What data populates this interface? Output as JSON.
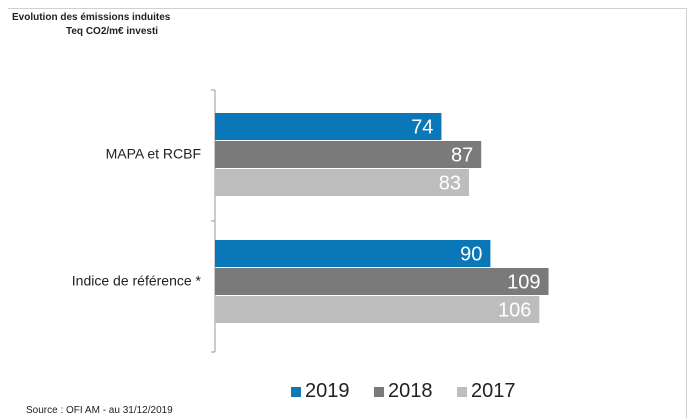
{
  "chart_data": {
    "type": "bar",
    "orientation": "horizontal",
    "title": "Evolution des émissions induites",
    "subtitle": "Teq CO2/m€ investi",
    "categories": [
      "MAPA et RCBF",
      "Indice de référence *"
    ],
    "series": [
      {
        "name": "2019",
        "values": [
          74,
          90
        ],
        "color": "#0a78b8"
      },
      {
        "name": "2018",
        "values": [
          87,
          109
        ],
        "color": "#7a7a7a"
      },
      {
        "name": "2017",
        "values": [
          83,
          106
        ],
        "color": "#bdbdbd"
      }
    ],
    "xlim": [
      0,
      109
    ],
    "grid": false,
    "legend_position": "bottom"
  },
  "source": "Source : OFI AM - au 31/12/2019"
}
